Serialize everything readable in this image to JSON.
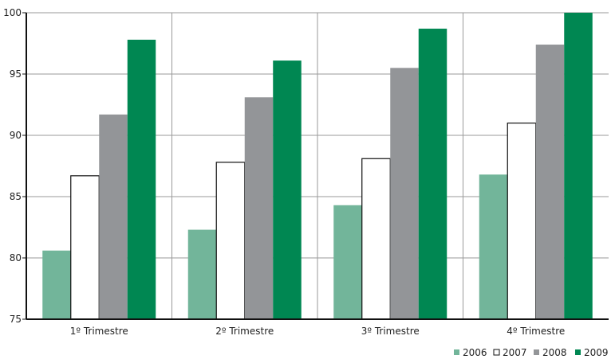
{
  "chart_data": {
    "type": "bar",
    "categories": [
      "1º Trimestre",
      "2º Trimestre",
      "3º Trimestre",
      "4º Trimestre"
    ],
    "series": [
      {
        "name": "2006",
        "color": "#72b59a",
        "values": [
          80.6,
          82.3,
          84.3,
          86.8
        ]
      },
      {
        "name": "2007",
        "color": "#ffffff",
        "values": [
          86.7,
          87.8,
          88.1,
          91.0
        ]
      },
      {
        "name": "2008",
        "color": "#939598",
        "values": [
          91.7,
          93.1,
          95.5,
          97.4
        ]
      },
      {
        "name": "2009",
        "color": "#008752",
        "values": [
          97.8,
          96.1,
          98.7,
          100.0
        ]
      }
    ],
    "ylim": [
      75,
      100
    ],
    "yticks": [
      75,
      80,
      85,
      90,
      95,
      100
    ],
    "grid": {
      "horizontal": true,
      "vertical": true
    },
    "legend_position": "bottom-right",
    "xlabel": "",
    "ylabel": "",
    "title": ""
  }
}
